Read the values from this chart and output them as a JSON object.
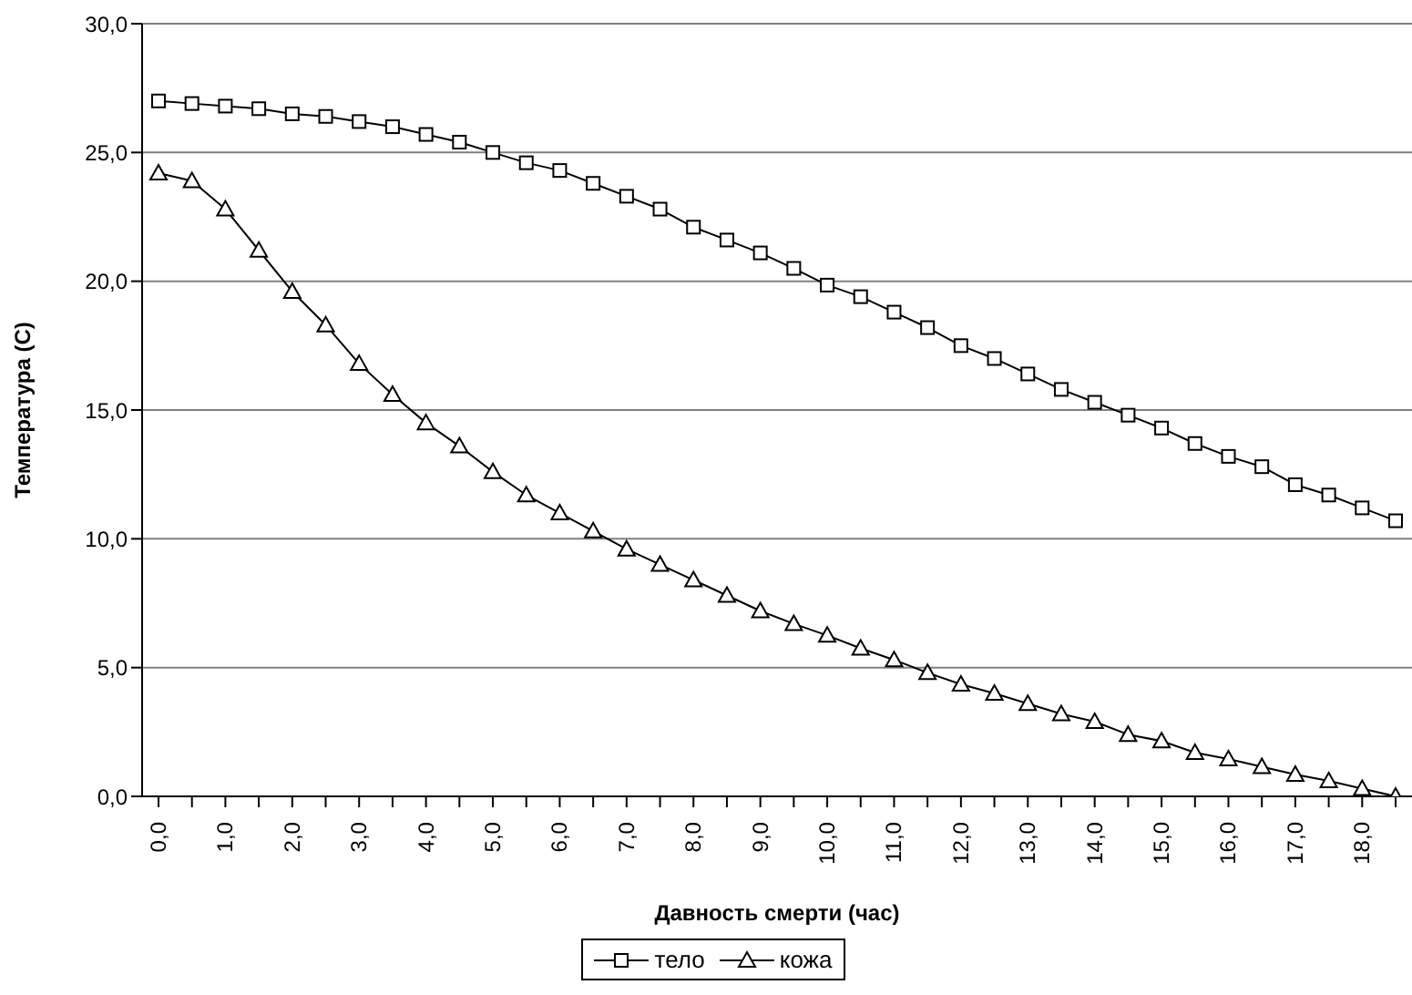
{
  "chart_data": {
    "type": "line",
    "xlabel": "Давность смерти (час)",
    "ylabel": "Температура (С)",
    "categories": [
      "0,0",
      null,
      "1,0",
      null,
      "2,0",
      null,
      "3,0",
      null,
      "4,0",
      null,
      "5,0",
      null,
      "6,0",
      null,
      "7,0",
      null,
      "8,0",
      null,
      "9,0",
      null,
      "10,0",
      null,
      "11,0",
      null,
      "12,0",
      null,
      "13,0",
      null,
      "14,0",
      null,
      "15,0",
      null,
      "16,0",
      null,
      "17,0",
      null,
      "18,0",
      null
    ],
    "series": [
      {
        "name": "тело",
        "color": "#000000",
        "marker": "square",
        "values": [
          27.0,
          26.9,
          26.8,
          26.7,
          26.5,
          26.4,
          26.2,
          26.0,
          25.7,
          25.4,
          25.0,
          24.6,
          24.3,
          23.8,
          23.3,
          22.8,
          22.1,
          21.6,
          21.1,
          20.5,
          19.85,
          19.4,
          18.8,
          18.2,
          17.5,
          17.0,
          16.4,
          15.8,
          15.3,
          14.8,
          14.3,
          13.7,
          13.2,
          12.8,
          12.1,
          11.7,
          11.2,
          10.7
        ]
      },
      {
        "name": "кожа",
        "color": "#000000",
        "marker": "triangle",
        "values": [
          24.2,
          23.9,
          22.8,
          21.2,
          19.6,
          18.3,
          16.8,
          15.6,
          14.5,
          13.6,
          12.6,
          11.7,
          11.0,
          10.3,
          9.6,
          9.0,
          8.4,
          7.8,
          7.2,
          6.7,
          6.25,
          5.75,
          5.3,
          4.8,
          4.35,
          4.0,
          3.6,
          3.2,
          2.9,
          2.4,
          2.15,
          1.7,
          1.45,
          1.15,
          0.85,
          0.6,
          0.3,
          0.0
        ]
      }
    ],
    "ylim": [
      0,
      30
    ],
    "yticks": [
      {
        "value": 0,
        "label": "0,0"
      },
      {
        "value": 5,
        "label": "5,0"
      },
      {
        "value": 10,
        "label": "10,0"
      },
      {
        "value": 15,
        "label": "15,0"
      },
      {
        "value": 20,
        "label": "20,0"
      },
      {
        "value": 25,
        "label": "25,0"
      },
      {
        "value": 30,
        "label": "30,0"
      }
    ],
    "grid": "y",
    "legend": "bottom",
    "line_style": "solid"
  }
}
